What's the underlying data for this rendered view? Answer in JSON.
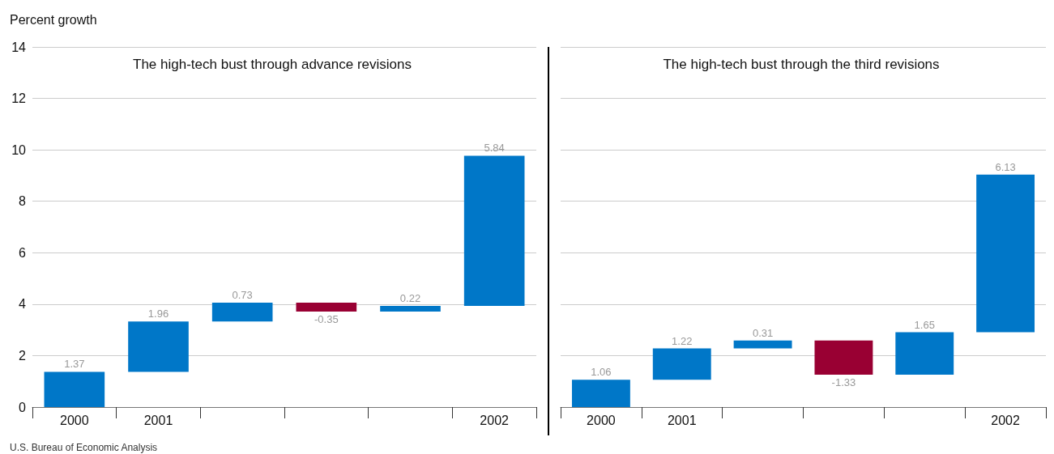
{
  "chart_data": [
    {
      "type": "bar",
      "title": "The high-tech bust through advance revisions",
      "ylabel": "Percent growth",
      "categories": [
        "2000",
        "2001",
        null,
        null,
        null,
        "2002"
      ],
      "values": [
        1.37,
        1.96,
        0.73,
        -0.35,
        0.22,
        5.84
      ],
      "base": [
        0,
        1.37,
        3.33,
        4.06,
        3.71,
        3.93
      ],
      "colors": [
        "#0077c8",
        "#0077c8",
        "#0077c8",
        "#990033",
        "#0077c8",
        "#0077c8"
      ],
      "ylim": [
        0,
        14
      ],
      "yticks": [
        0,
        2,
        4,
        6,
        8,
        10,
        12,
        14
      ],
      "grid": "y",
      "data_labels": true,
      "annotations": [
        "U.S. Bureau of Economic Analysis"
      ]
    },
    {
      "type": "bar",
      "title": "The high-tech bust through the third revisions",
      "categories": [
        "2000",
        "2001",
        null,
        null,
        null,
        "2002"
      ],
      "values": [
        1.06,
        1.22,
        0.31,
        -1.33,
        1.65,
        6.13
      ],
      "base": [
        0,
        1.06,
        2.28,
        2.59,
        1.26,
        2.91
      ],
      "colors": [
        "#0077c8",
        "#0077c8",
        "#0077c8",
        "#990033",
        "#0077c8",
        "#0077c8"
      ],
      "ylim": [
        0,
        14
      ],
      "yticks": [
        0,
        2,
        4,
        6,
        8,
        10,
        12,
        14
      ],
      "grid": "y",
      "data_labels": true,
      "tick_labels": "x"
    }
  ]
}
